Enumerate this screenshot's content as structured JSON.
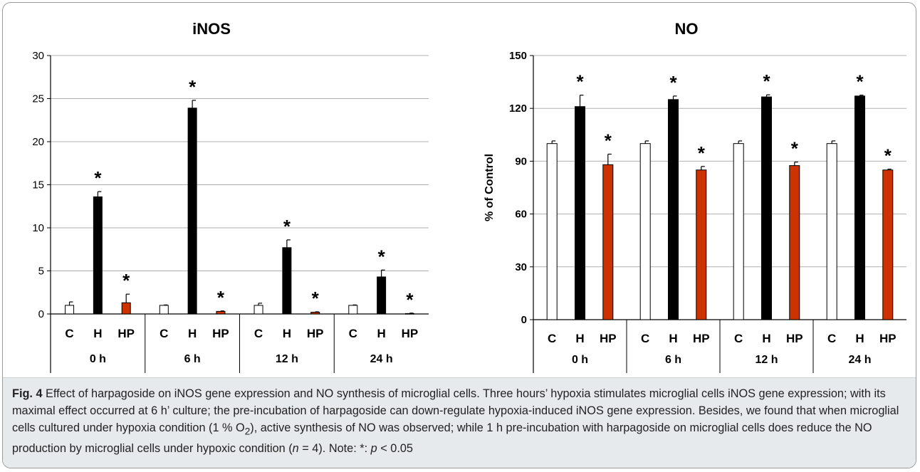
{
  "colors": {
    "C": "#ffffff",
    "H": "#000000",
    "HP": "#cc3300",
    "caption_bg": "#e7eaec"
  },
  "chart_data": [
    {
      "type": "bar",
      "title": "iNOS",
      "ylabel": "",
      "ylim": [
        0,
        30
      ],
      "yticks": [
        "0",
        "5",
        "10",
        "15",
        "20",
        "25",
        "30"
      ],
      "grid": true,
      "categories": [
        "C",
        "H",
        "HP"
      ],
      "groups": [
        "0 h",
        "6 h",
        "12 h",
        "24 h"
      ],
      "values": [
        [
          1.0,
          13.6,
          1.3
        ],
        [
          1.0,
          23.9,
          0.3
        ],
        [
          1.0,
          7.7,
          0.2
        ],
        [
          1.0,
          4.3,
          0.05
        ]
      ],
      "errors": [
        [
          0.4,
          0.6,
          1.0
        ],
        [
          0.05,
          0.9,
          0.05
        ],
        [
          0.25,
          0.9,
          0.05
        ],
        [
          0.05,
          0.8,
          0.05
        ]
      ],
      "significant": [
        [
          false,
          true,
          true
        ],
        [
          false,
          true,
          true
        ],
        [
          false,
          true,
          true
        ],
        [
          false,
          true,
          true
        ]
      ],
      "star_label": "*"
    },
    {
      "type": "bar",
      "title": "NO",
      "ylabel": "% of Control",
      "ylim": [
        0,
        150
      ],
      "yticks": [
        "0",
        "30",
        "60",
        "90",
        "120",
        "150"
      ],
      "grid": true,
      "categories": [
        "C",
        "H",
        "HP"
      ],
      "groups": [
        "0 h",
        "6 h",
        "12 h",
        "24 h"
      ],
      "values": [
        [
          100,
          121,
          88
        ],
        [
          100,
          125,
          85
        ],
        [
          100,
          126.5,
          87.5
        ],
        [
          100,
          127,
          85
        ]
      ],
      "errors": [
        [
          1.5,
          6.5,
          6.0
        ],
        [
          1.5,
          2.0,
          2.0
        ],
        [
          1.5,
          1.2,
          2.0
        ],
        [
          1.5,
          0.5,
          0.5
        ]
      ],
      "significant": [
        [
          false,
          true,
          true
        ],
        [
          false,
          true,
          true
        ],
        [
          false,
          true,
          true
        ],
        [
          false,
          true,
          true
        ]
      ],
      "star_label": "*"
    }
  ],
  "caption": {
    "fig_label": "Fig. 4",
    "text_1": " Effect of harpagoside on iNOS gene expression and NO synthesis of microglial cells. Three hours’ hypoxia stimulates microglial cells iNOS gene expression; with its maximal effect occurred at 6 h’ culture; the pre-incubation of harpagoside can down-regulate hypoxia-induced iNOS gene expression. Besides, we found that when microglial cells cultured under hypoxia condition (1 % O",
    "o2_sub": "2",
    "text_2": "), active synthesis of NO was observed; while 1 h pre-incubation with harpagoside on microglial cells does reduce the NO production by microglial cells under hypoxic condition (",
    "n_italic": "n",
    "text_3": " = 4). Note: *: ",
    "p_italic": "p",
    "text_4": " < 0.05"
  }
}
